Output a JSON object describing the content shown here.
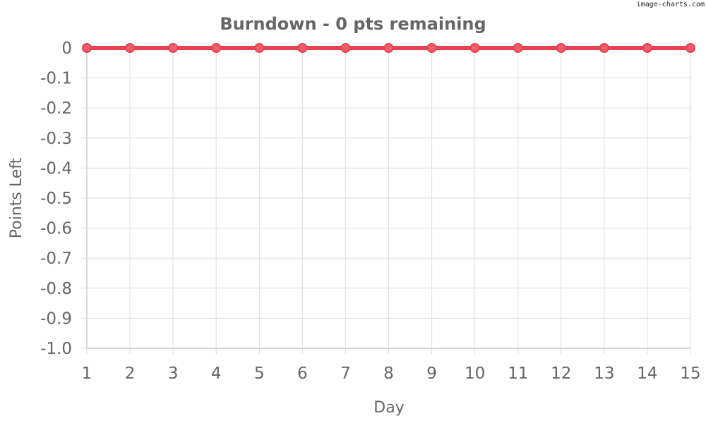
{
  "watermark": "image-charts.com",
  "colors": {
    "series": "#e8414f",
    "marker_fill": "#ee5f6a",
    "text": "#666666",
    "grid": "#dddddd"
  },
  "chart_data": {
    "type": "line",
    "title": "Burndown - 0 pts remaining",
    "xlabel": "Day",
    "ylabel": "Points Left",
    "x": [
      1,
      2,
      3,
      4,
      5,
      6,
      7,
      8,
      9,
      10,
      11,
      12,
      13,
      14,
      15
    ],
    "series": [
      {
        "values": [
          0,
          0,
          0,
          0,
          0,
          0,
          0,
          0,
          0,
          0,
          0,
          0,
          0,
          0,
          0
        ]
      }
    ],
    "x_ticks": [
      "1",
      "2",
      "3",
      "4",
      "5",
      "6",
      "7",
      "8",
      "9",
      "10",
      "11",
      "12",
      "13",
      "14",
      "15"
    ],
    "y_ticks": [
      "0",
      "-0.1",
      "-0.2",
      "-0.3",
      "-0.4",
      "-0.5",
      "-0.6",
      "-0.7",
      "-0.8",
      "-0.9",
      "-1.0"
    ],
    "xlim": [
      1,
      15
    ],
    "ylim": [
      -1.0,
      0
    ],
    "grid": true,
    "markers": true
  }
}
